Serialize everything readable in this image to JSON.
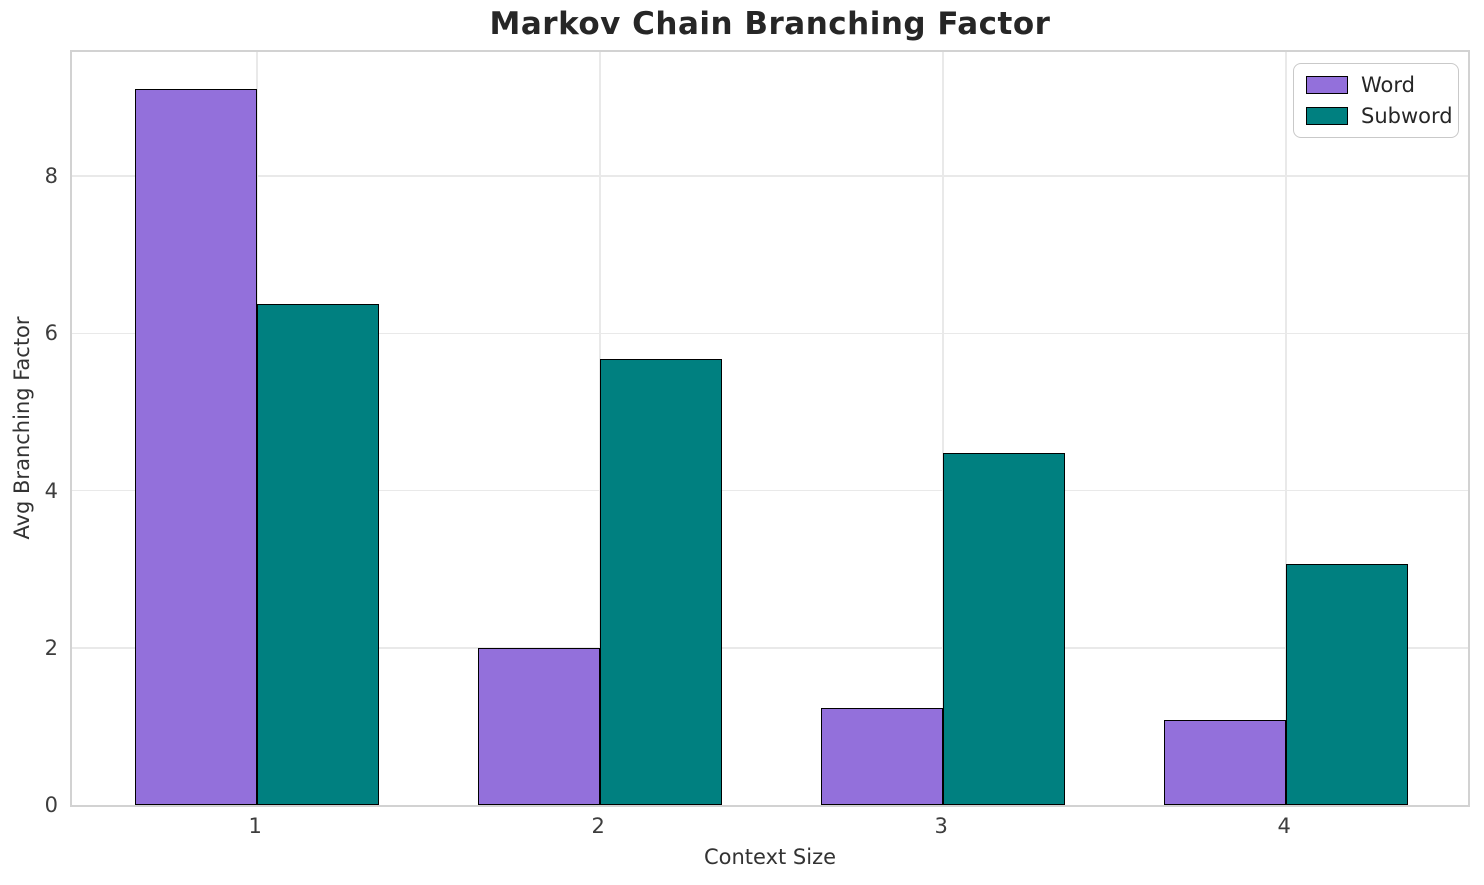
{
  "chart_data": {
    "type": "bar",
    "title": "Markov Chain Branching Factor",
    "xlabel": "Context Size",
    "ylabel": "Avg Branching Factor",
    "categories": [
      "1",
      "2",
      "3",
      "4"
    ],
    "x": [
      0,
      1,
      2,
      3
    ],
    "series": [
      {
        "name": "Word",
        "color": "#9370DB",
        "values": [
          9.11,
          2.0,
          1.24,
          1.08
        ]
      },
      {
        "name": "Subword",
        "color": "#008080",
        "values": [
          6.37,
          5.68,
          4.48,
          3.06
        ]
      }
    ],
    "yticks": [
      0,
      2,
      4,
      6,
      8
    ],
    "ylim": [
      0,
      9.58
    ],
    "xlim": [
      -0.54,
      3.53
    ],
    "bar_width": 0.355,
    "bar_edge_color": "#000000",
    "grid": true,
    "grid_color": "#e9e9e9",
    "spine_color": "#d2d2d2",
    "background": "#ffffff",
    "legend": {
      "position": "upper right",
      "labels": [
        "Word",
        "Subword"
      ]
    }
  }
}
